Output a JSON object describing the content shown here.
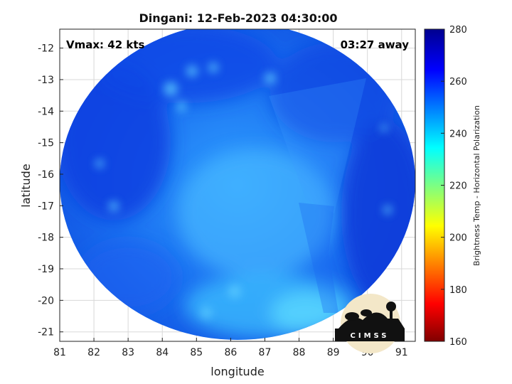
{
  "chart_data": {
    "type": "heatmap",
    "title": "Dingani: 12-Feb-2023 04:30:00",
    "xlabel": "longitude",
    "ylabel": "latitude",
    "xlim": [
      81,
      91.4
    ],
    "ylim": [
      -21.3,
      -11.4
    ],
    "x_ticks": [
      81,
      82,
      83,
      84,
      85,
      86,
      87,
      88,
      89,
      90,
      91
    ],
    "y_ticks": [
      -12,
      -13,
      -14,
      -15,
      -16,
      -17,
      -18,
      -19,
      -20,
      -21
    ],
    "grid": true,
    "annotations": {
      "vmax": "Vmax: 42 kts",
      "away": "03:27 away"
    },
    "colorbar": {
      "label": "Brightness Temp - Horizontal Polarization",
      "range": [
        160,
        280
      ],
      "ticks": [
        280,
        260,
        240,
        220,
        200,
        180,
        160
      ],
      "colormap": "jet"
    }
  },
  "logo": {
    "text": "CIMSS"
  }
}
